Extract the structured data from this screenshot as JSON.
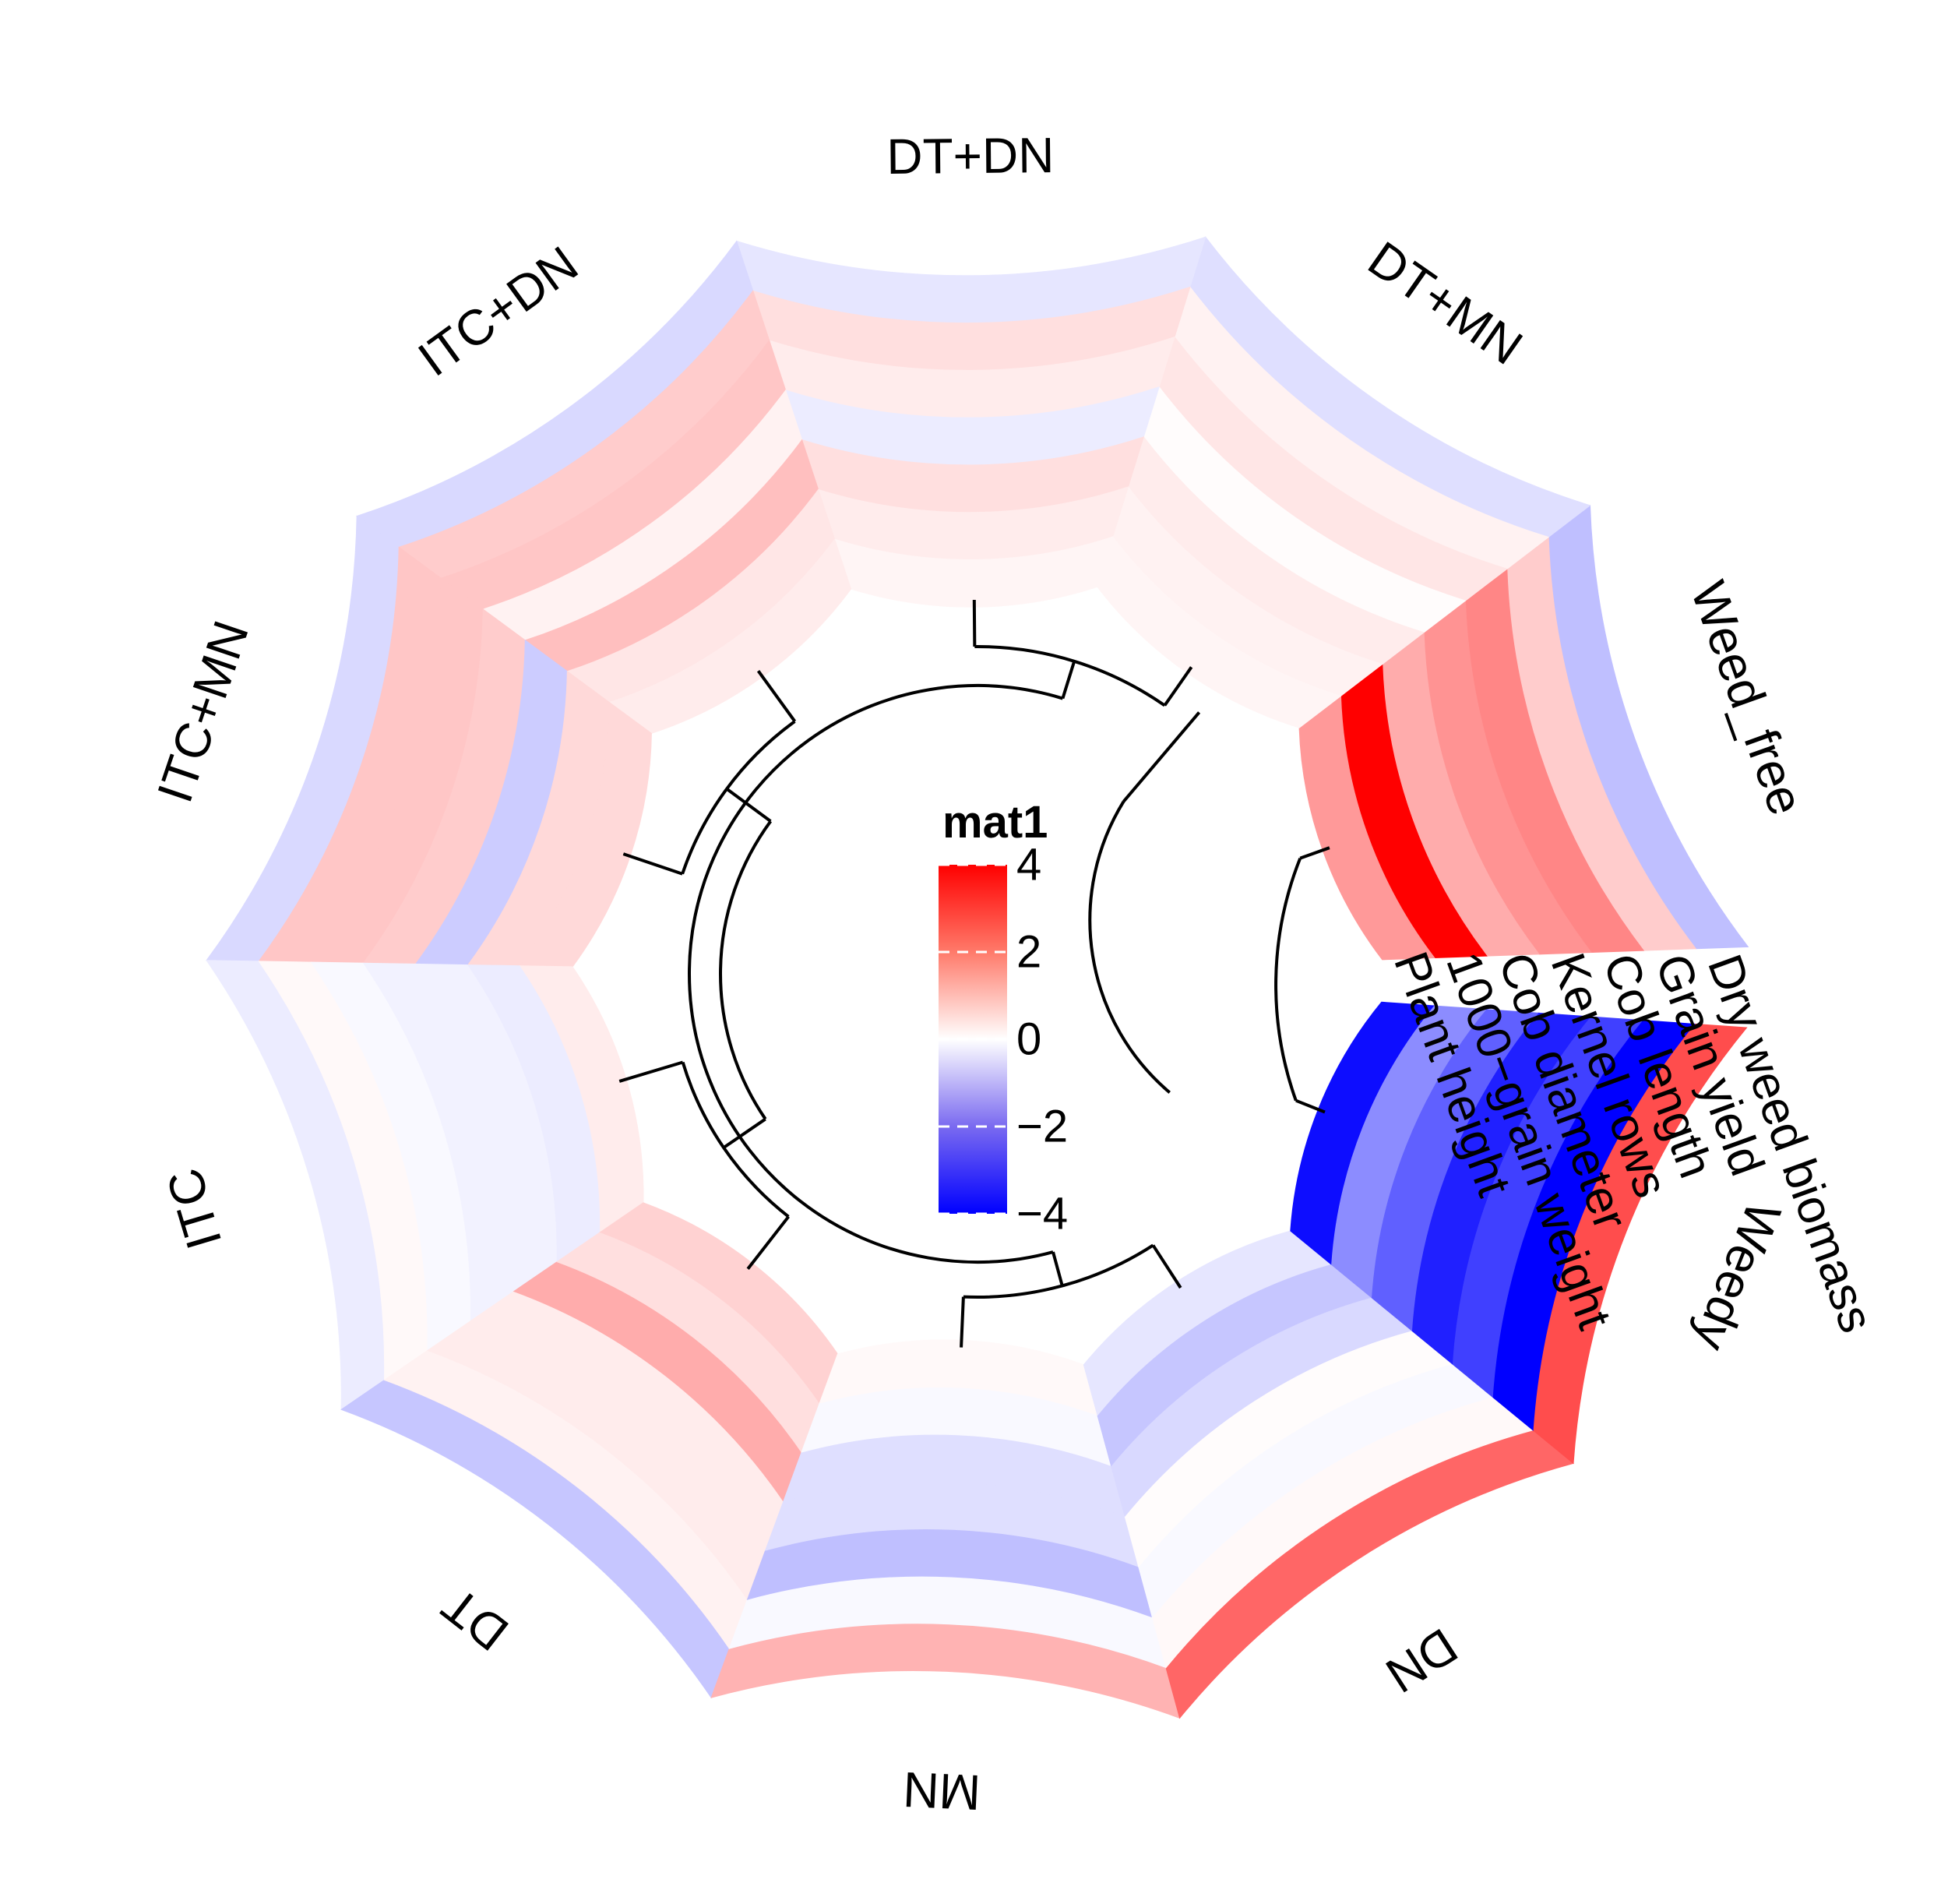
{
  "chart_data": {
    "type": "heatmap",
    "layout": "circular",
    "legend": {
      "title": "mat1",
      "ticks": [
        4,
        2,
        0,
        -2,
        -4
      ],
      "colors": {
        "low": "#0000ff",
        "mid": "#ffffff",
        "high": "#ff0000"
      },
      "range": [
        -4,
        4
      ]
    },
    "sectors": [
      "Weed_free",
      "DT+MN",
      "DT+DN",
      "ITC+DN",
      "ITC+MN",
      "ITC",
      "DT",
      "MN",
      "DN",
      "Weedy"
    ],
    "tracks": [
      "Dry weed biomass",
      "Grain yield",
      "Cob length",
      "Kernel rows",
      "Cob diameter",
      "1000−grain weight",
      "Plant height"
    ],
    "values": [
      [
        -1.0,
        0.8,
        1.9,
        1.7,
        1.3,
        4.0,
        1.6
      ],
      [
        -0.5,
        0.2,
        0.4,
        0.05,
        0.3,
        0.2,
        0.15
      ],
      [
        -0.4,
        0.5,
        0.3,
        -0.3,
        0.5,
        0.3,
        0.15
      ],
      [
        -0.6,
        0.8,
        0.9,
        0.2,
        1.0,
        0.4,
        0.3
      ],
      [
        -0.6,
        0.9,
        0.9,
        0.8,
        -0.8,
        0.6,
        0.6
      ],
      [
        -0.3,
        0.1,
        -0.1,
        -0.2,
        -0.2,
        -0.3,
        0.3
      ],
      [
        -0.9,
        0.2,
        0.3,
        0.3,
        1.3,
        0.5,
        0.7
      ],
      [
        1.2,
        -0.1,
        -1.0,
        -0.5,
        -0.5,
        -0.1,
        0.1
      ],
      [
        2.4,
        0.1,
        -0.1,
        0.05,
        -0.6,
        -0.9,
        -0.4
      ],
      [
        2.8,
        -4.0,
        -3.0,
        -3.5,
        -2.5,
        -1.8,
        -3.8
      ]
    ],
    "dendrogram": true
  }
}
